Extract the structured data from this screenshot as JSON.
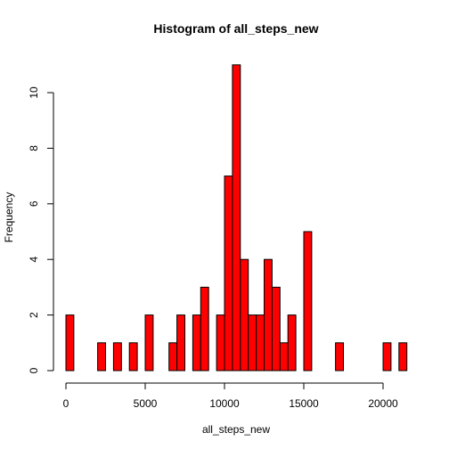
{
  "chart_data": {
    "type": "bar",
    "title": "Histogram of all_steps_new",
    "xlabel": "all_steps_new",
    "ylabel": "Frequency",
    "bar_color": "#ff0000",
    "bin_width": 500,
    "xlim": [
      0,
      21500
    ],
    "ylim": [
      0,
      11
    ],
    "x_ticks": [
      0,
      5000,
      10000,
      15000,
      20000
    ],
    "y_ticks": [
      0,
      2,
      4,
      6,
      8,
      10
    ],
    "grid": false,
    "bins_start": [
      0,
      500,
      1000,
      1500,
      2000,
      2500,
      3000,
      3500,
      4000,
      4500,
      5000,
      5500,
      6000,
      6500,
      7000,
      7500,
      8000,
      8500,
      9000,
      9500,
      10000,
      10500,
      11000,
      11500,
      12000,
      12500,
      13000,
      13500,
      14000,
      14500,
      15000,
      15500,
      16000,
      16500,
      17000,
      17500,
      18000,
      18500,
      19000,
      19500,
      20000,
      20500,
      21000
    ],
    "values": [
      2,
      0,
      0,
      0,
      1,
      0,
      1,
      0,
      1,
      0,
      2,
      0,
      0,
      1,
      2,
      0,
      2,
      3,
      0,
      2,
      7,
      11,
      4,
      2,
      2,
      4,
      3,
      1,
      2,
      0,
      5,
      0,
      0,
      0,
      1,
      0,
      0,
      0,
      0,
      0,
      1,
      0,
      1
    ]
  }
}
